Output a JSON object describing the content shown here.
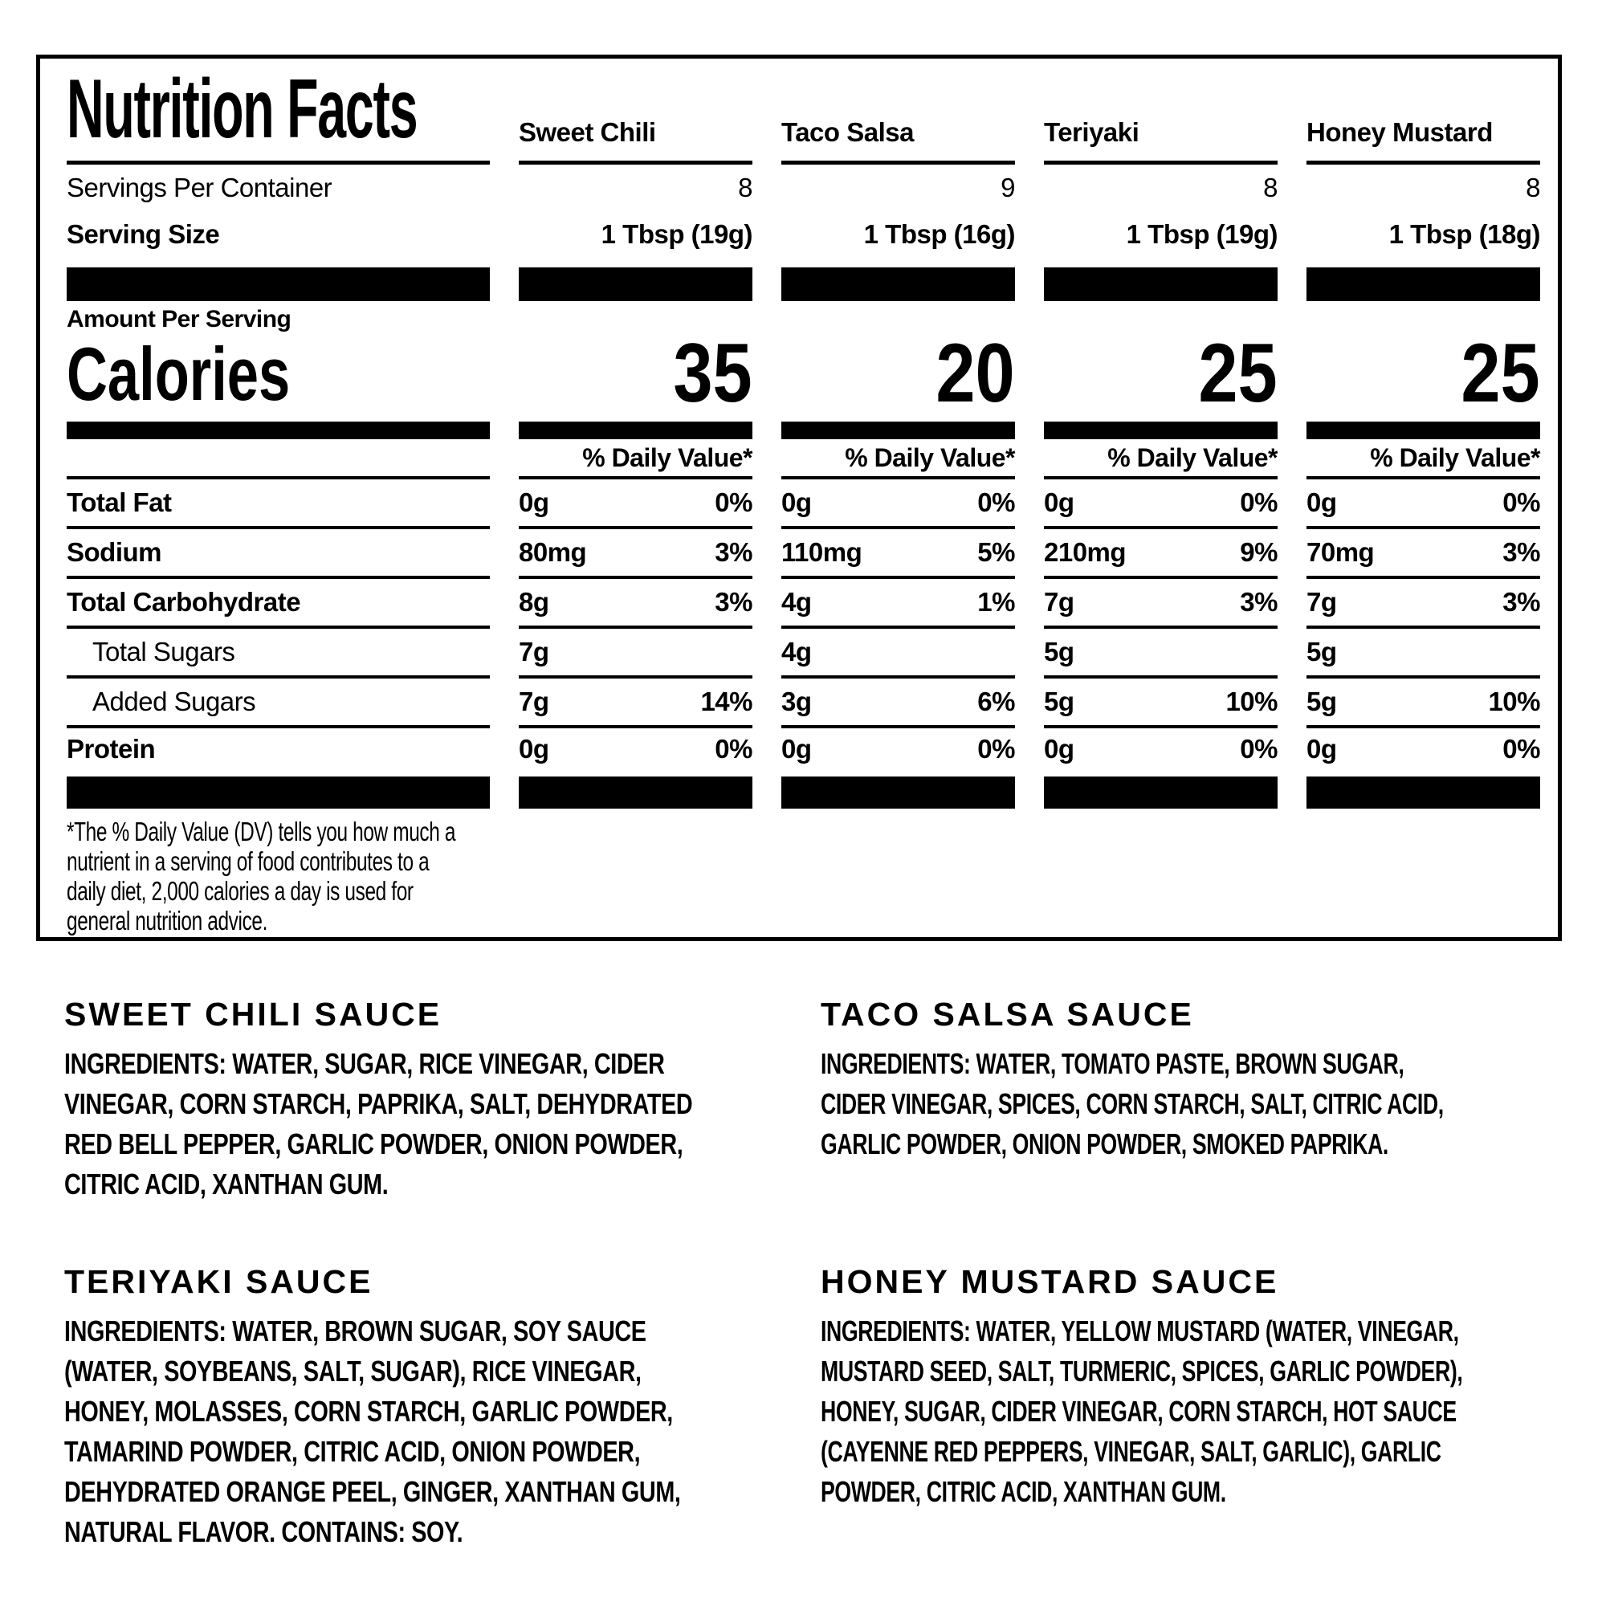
{
  "panel": {
    "title": "Nutrition Facts",
    "servings_per_container_label": "Servings Per Container",
    "serving_size_label": "Serving Size",
    "amount_per_serving_label": "Amount Per Serving",
    "calories_label": "Calories",
    "daily_value_label": "% Daily Value*",
    "columns": [
      {
        "name": "Sweet Chili",
        "servings_per_container": "8",
        "serving_size": "1 Tbsp (19g)",
        "calories": "35"
      },
      {
        "name": "Taco Salsa",
        "servings_per_container": "9",
        "serving_size": "1 Tbsp (16g)",
        "calories": "20"
      },
      {
        "name": "Teriyaki",
        "servings_per_container": "8",
        "serving_size": "1 Tbsp (19g)",
        "calories": "25"
      },
      {
        "name": "Honey Mustard",
        "servings_per_container": "8",
        "serving_size": "1 Tbsp (18g)",
        "calories": "25"
      }
    ],
    "rows": [
      {
        "label": "Total Fat",
        "amounts": [
          "0g",
          "0g",
          "0g",
          "0g"
        ],
        "dv": [
          "0%",
          "0%",
          "0%",
          "0%"
        ]
      },
      {
        "label": "Sodium",
        "amounts": [
          "80mg",
          "110mg",
          "210mg",
          "70mg"
        ],
        "dv": [
          "3%",
          "5%",
          "9%",
          "3%"
        ]
      },
      {
        "label": "Total Carbohydrate",
        "amounts": [
          "8g",
          "4g",
          "7g",
          "7g"
        ],
        "dv": [
          "3%",
          "1%",
          "3%",
          "3%"
        ]
      },
      {
        "label": "Total Sugars",
        "amounts": [
          "7g",
          "4g",
          "5g",
          "5g"
        ],
        "dv": [
          "",
          "",
          "",
          ""
        ]
      },
      {
        "label": "Added Sugars",
        "amounts": [
          "7g",
          "3g",
          "5g",
          "5g"
        ],
        "dv": [
          "14%",
          "6%",
          "10%",
          "10%"
        ]
      },
      {
        "label": "Protein",
        "amounts": [
          "0g",
          "0g",
          "0g",
          "0g"
        ],
        "dv": [
          "0%",
          "0%",
          "0%",
          "0%"
        ]
      }
    ],
    "footnote": "*The % Daily Value (DV) tells you how much a\nnutrient in a serving of food contributes to a\ndaily diet, 2,000 calories a day is used for\ngeneral nutrition advice.",
    "colors": {
      "ink": "#000000",
      "background": "#ffffff"
    }
  },
  "sections": [
    {
      "title": "SWEET CHILI SAUCE",
      "ingredients_label": "INGREDIENTS:",
      "ingredients": " WATER, SUGAR, RICE VINEGAR, CIDER\nVINEGAR, CORN STARCH, PAPRIKA, SALT, DEHYDRATED\nRED BELL PEPPER, GARLIC POWDER, ONION POWDER,\nCITRIC ACID, XANTHAN GUM."
    },
    {
      "title": "TACO SALSA SAUCE",
      "ingredients_label": "INGREDIENTS:",
      "ingredients": " WATER, TOMATO PASTE, BROWN SUGAR,\nCIDER VINEGAR, SPICES, CORN STARCH, SALT, CITRIC ACID,\nGARLIC POWDER, ONION POWDER, SMOKED PAPRIKA."
    },
    {
      "title": "TERIYAKI SAUCE",
      "ingredients_label": "INGREDIENTS:",
      "ingredients": " WATER, BROWN SUGAR, SOY SAUCE\n(WATER, SOYBEANS, SALT, SUGAR), RICE VINEGAR,\nHONEY, MOLASSES, CORN STARCH, GARLIC POWDER,\nTAMARIND POWDER, CITRIC ACID, ONION POWDER,\nDEHYDRATED ORANGE PEEL, GINGER, XANTHAN GUM,\nNATURAL FLAVOR. CONTAINS: SOY."
    },
    {
      "title": "HONEY MUSTARD SAUCE",
      "ingredients_label": "INGREDIENTS:",
      "ingredients": " WATER, YELLOW MUSTARD (WATER, VINEGAR,\nMUSTARD SEED, SALT, TURMERIC, SPICES, GARLIC POWDER),\nHONEY, SUGAR, CIDER VINEGAR, CORN STARCH, HOT SAUCE\n(CAYENNE RED PEPPERS, VINEGAR, SALT, GARLIC), GARLIC\nPOWDER, CITRIC ACID, XANTHAN GUM."
    }
  ]
}
